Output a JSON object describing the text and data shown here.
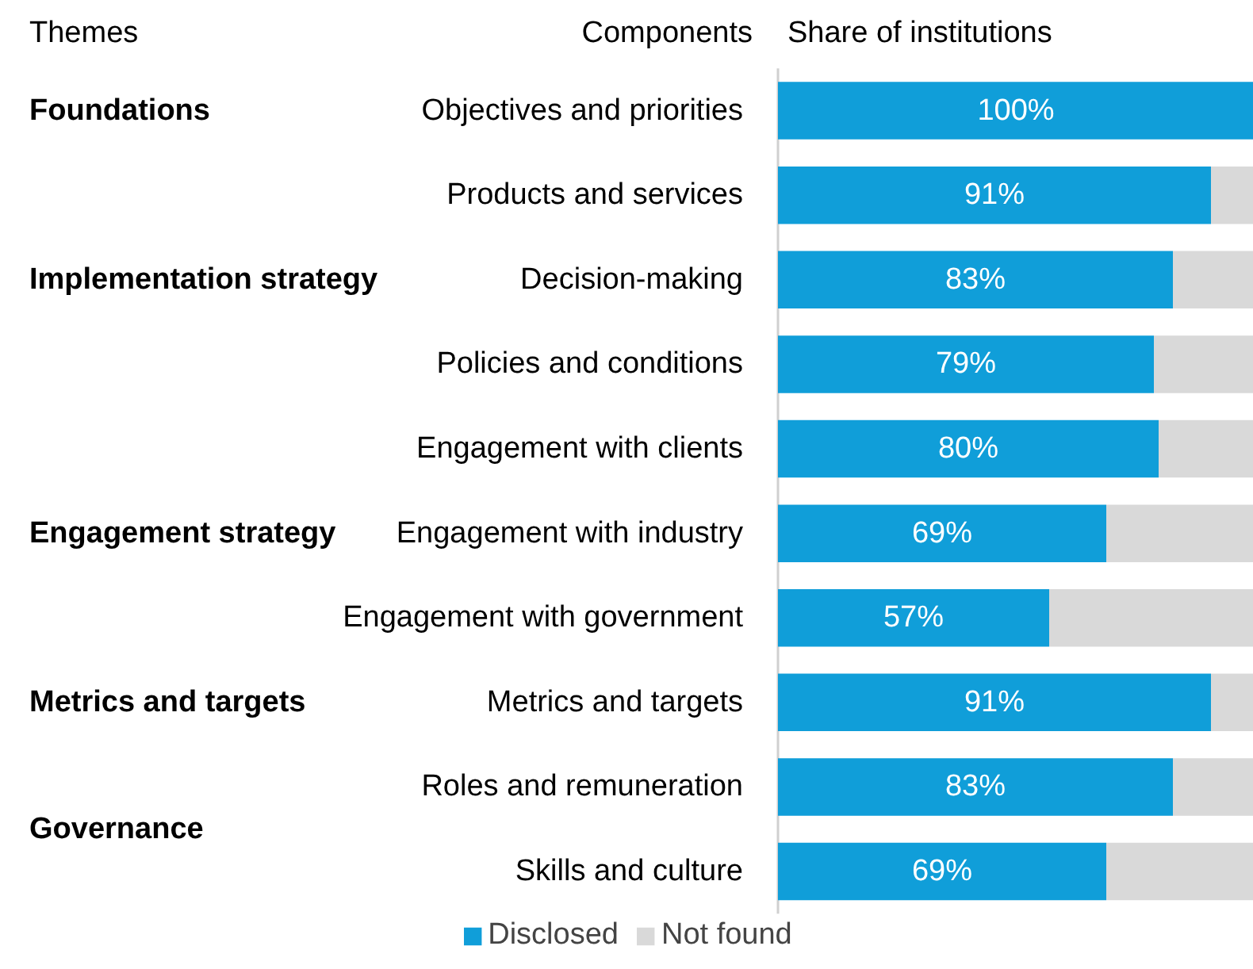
{
  "chart_data": {
    "type": "bar",
    "orientation": "horizontal",
    "stacked": true,
    "title": "Share of institutions",
    "ylabel": "Components",
    "categories": [
      "Objectives and priorities",
      "Products and services",
      "Decision-making",
      "Policies and conditions",
      "Engagement with clients",
      "Engagement with industry",
      "Engagement with government",
      "Metrics and targets",
      "Roles and remuneration",
      "Skills and culture"
    ],
    "series": [
      {
        "name": "Disclosed",
        "color": "#109ed9",
        "values": [
          100,
          91,
          83,
          79,
          80,
          69,
          57,
          91,
          83,
          69
        ],
        "value_labels": [
          "100%",
          "91%",
          "83%",
          "79%",
          "80%",
          "69%",
          "57%",
          "91%",
          "83%",
          "69%"
        ]
      },
      {
        "name": "Not found",
        "color": "#d9d9d9",
        "values": [
          0,
          9,
          17,
          21,
          20,
          31,
          43,
          9,
          17,
          31
        ]
      }
    ],
    "annotations": [
      "Themes",
      "Foundations",
      "Implementation strategy",
      "Engagement strategy",
      "Metrics and targets",
      "Governance"
    ],
    "legend": "bottom",
    "grid": false
  }
}
